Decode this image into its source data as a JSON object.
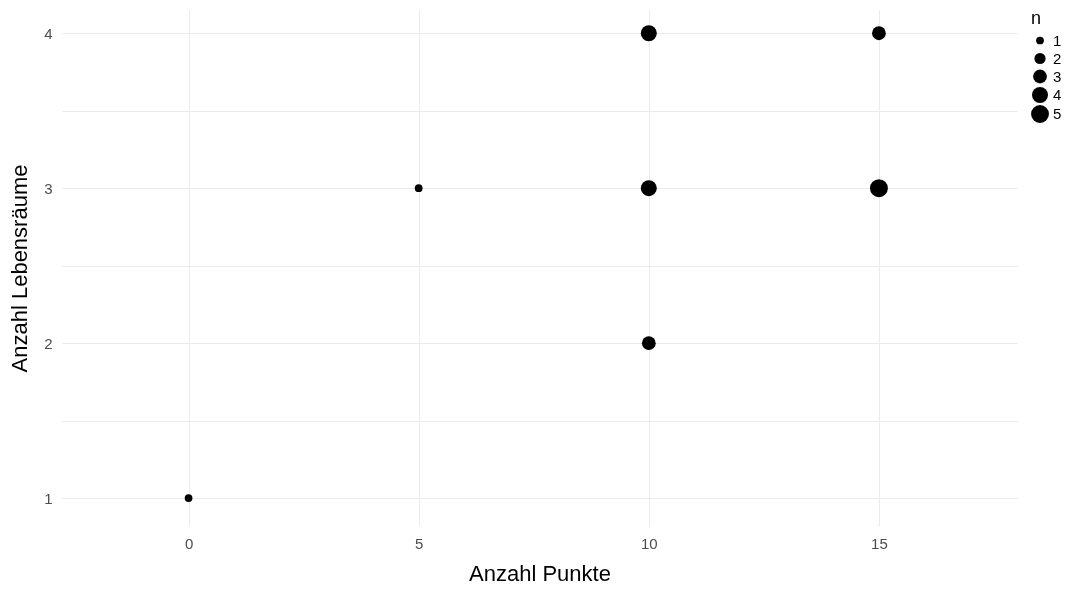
{
  "chart_data": {
    "type": "bubble",
    "xlabel": "Anzahl Punkte",
    "ylabel": "Anzahl Lebensräume",
    "legend_title": "n",
    "x": [
      0,
      5,
      10,
      10,
      10,
      15,
      15
    ],
    "values": [
      1,
      3,
      4,
      3,
      2,
      4,
      3
    ],
    "sizes": [
      1,
      1,
      4,
      4,
      3,
      3,
      5
    ],
    "size_legend": [
      1,
      2,
      3,
      4,
      5
    ],
    "color": "#000000",
    "xlim": [
      -2.75,
      18
    ],
    "xticks": [
      0,
      5,
      10,
      15
    ],
    "ylim": [
      0.82,
      4.15
    ],
    "yticks": [
      1,
      {
        "value": 1.5,
        "label": null
      },
      2,
      {
        "value": 2.5,
        "label": null
      },
      3,
      {
        "value": 3.5,
        "label": null
      },
      4
    ],
    "grid": true
  }
}
